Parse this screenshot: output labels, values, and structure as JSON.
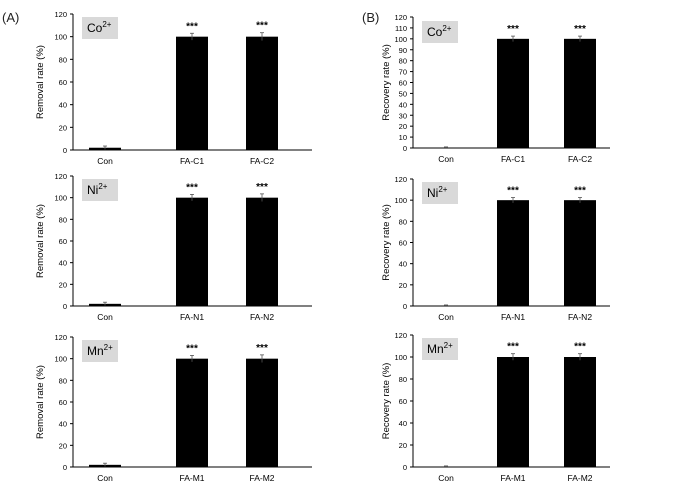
{
  "panel_labels": [
    "(A)",
    "(B)"
  ],
  "chart_data": [
    {
      "type": "bar",
      "panel": "(A)",
      "ion": "Co",
      "ion_charge": "2+",
      "categories": [
        "Con",
        "FA-C1",
        "FA-C2"
      ],
      "values": [
        2,
        100,
        100
      ],
      "errors": [
        1.5,
        3,
        3.5
      ],
      "significance": [
        "",
        "***",
        "***"
      ],
      "ylabel": "Removal rate (%)",
      "ylim": [
        0,
        120
      ],
      "yticks": [
        0,
        20,
        40,
        60,
        80,
        100,
        120
      ],
      "bar_color": "#000000"
    },
    {
      "type": "bar",
      "panel": "(A)",
      "ion": "Ni",
      "ion_charge": "2+",
      "categories": [
        "Con",
        "FA-N1",
        "FA-N2"
      ],
      "values": [
        2,
        100,
        100
      ],
      "errors": [
        1.5,
        3,
        3.5
      ],
      "significance": [
        "",
        "***",
        "***"
      ],
      "ylabel": "Removal rate (%)",
      "ylim": [
        0,
        120
      ],
      "yticks": [
        0,
        20,
        40,
        60,
        80,
        100,
        120
      ],
      "bar_color": "#000000"
    },
    {
      "type": "bar",
      "panel": "(A)",
      "ion": "Mn",
      "ion_charge": "2+",
      "categories": [
        "Con",
        "FA-M1",
        "FA-M2"
      ],
      "values": [
        2,
        100,
        100
      ],
      "errors": [
        1.5,
        3,
        3.5
      ],
      "significance": [
        "",
        "***",
        "***"
      ],
      "ylabel": "Removal rate (%)",
      "ylim": [
        0,
        120
      ],
      "yticks": [
        0,
        20,
        40,
        60,
        80,
        100,
        120
      ],
      "bar_color": "#000000"
    },
    {
      "type": "bar",
      "panel": "(B)",
      "ion": "Co",
      "ion_charge": "2+",
      "categories": [
        "Con",
        "FA-C1",
        "FA-C2"
      ],
      "values": [
        0,
        100,
        100
      ],
      "errors": [
        1,
        2.5,
        2.5
      ],
      "significance": [
        "",
        "***",
        "***"
      ],
      "ylabel": "Recovery rate (%)",
      "ylim": [
        0,
        120
      ],
      "yticks": [
        0,
        10,
        20,
        30,
        40,
        50,
        60,
        70,
        80,
        90,
        100,
        110,
        120
      ],
      "bar_color": "#000000"
    },
    {
      "type": "bar",
      "panel": "(B)",
      "ion": "Ni",
      "ion_charge": "2+",
      "categories": [
        "Con",
        "FA-N1",
        "FA-N2"
      ],
      "values": [
        0,
        100,
        100
      ],
      "errors": [
        1,
        2.5,
        2.5
      ],
      "significance": [
        "",
        "***",
        "***"
      ],
      "ylabel": "Recovery rate (%)",
      "ylim": [
        0,
        120
      ],
      "yticks": [
        0,
        20,
        40,
        60,
        80,
        100,
        120
      ],
      "bar_color": "#000000"
    },
    {
      "type": "bar",
      "panel": "(B)",
      "ion": "Mn",
      "ion_charge": "2+",
      "categories": [
        "Con",
        "FA-M1",
        "FA-M2"
      ],
      "values": [
        0,
        100,
        100
      ],
      "errors": [
        1,
        3,
        3
      ],
      "significance": [
        "",
        "***",
        "***"
      ],
      "ylabel": "Recovery rate (%)",
      "ylim": [
        0,
        120
      ],
      "yticks": [
        0,
        20,
        40,
        60,
        80,
        100,
        120
      ],
      "bar_color": "#000000"
    }
  ]
}
